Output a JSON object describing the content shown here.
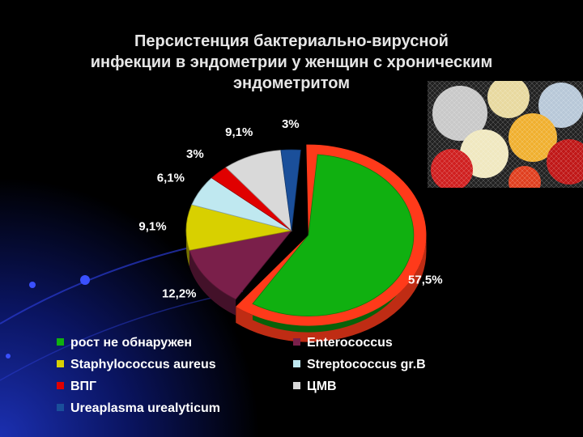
{
  "title_lines": [
    "Персистенция  бактериально-вирусной",
    "инфекции в эндометрии у женщин с хроническим",
    "эндометритом"
  ],
  "chart_data": {
    "type": "pie",
    "title": "Персистенция  бактериально-вирусной инфекции в эндометрии у женщин с хроническим эндометритом",
    "legend_position": "bottom",
    "slices": [
      {
        "name": "рост не обнаружен",
        "value": 57.5,
        "label": "57,5%",
        "color": "#10b010",
        "exploded": true,
        "ring_color": "#ff3a1a"
      },
      {
        "name": "Enterococcus",
        "value": 12.2,
        "label": "12,2%",
        "color": "#7a1f4a"
      },
      {
        "name": "Staphylococcus aureus",
        "value": 9.1,
        "label": "9,1%",
        "color": "#d8d000"
      },
      {
        "name": "Streptococcus gr.B",
        "value": 6.1,
        "label": "6,1%",
        "color": "#bfe8f0"
      },
      {
        "name": "ВПГ",
        "value": 3,
        "label": "3%",
        "color": "#e00000"
      },
      {
        "name": "ЦМВ",
        "value": 9.1,
        "label": "9,1%",
        "color": "#d9d9d9"
      },
      {
        "name": "Ureaplasma urealyticum",
        "value": 3,
        "label": "3%",
        "color": "#1a4f9a"
      }
    ]
  }
}
